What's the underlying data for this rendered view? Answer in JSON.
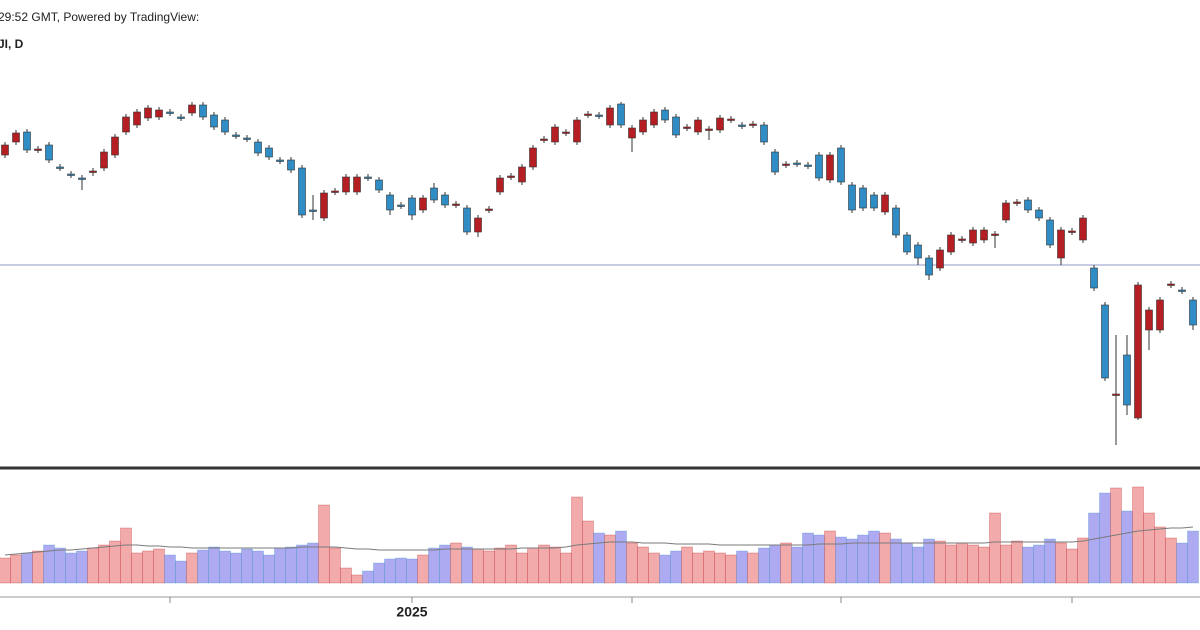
{
  "chart_data": {
    "type": "candlestick",
    "title": "29:52 GMT, Powered by TradingView:",
    "subtitle": "JI, D",
    "open": [
      315,
      328,
      338,
      320,
      325,
      303,
      296,
      292,
      298,
      302,
      315,
      338,
      345,
      352,
      353,
      358,
      353,
      357,
      365,
      355,
      350,
      335,
      332,
      328,
      322,
      310,
      310,
      302,
      260,
      252,
      278,
      278,
      278,
      293,
      290,
      275,
      265,
      272,
      260,
      282,
      275,
      265,
      262,
      238,
      260,
      278,
      293,
      288,
      303,
      330,
      328,
      337,
      328,
      355,
      355,
      345,
      366,
      332,
      338,
      345,
      360,
      353,
      342,
      338,
      340,
      340,
      350,
      345,
      345,
      345,
      318,
      305,
      307,
      305,
      315,
      290,
      322,
      285,
      282,
      275,
      258,
      262,
      235,
      225,
      212,
      202,
      218,
      230,
      227,
      230,
      235,
      250,
      267,
      270,
      260,
      250,
      212,
      238,
      230,
      202,
      165,
      75,
      115,
      52,
      140,
      140,
      185,
      180,
      170
    ],
    "high": [
      328,
      340,
      341,
      324,
      328,
      306,
      299,
      295,
      302,
      321,
      336,
      356,
      361,
      365,
      363,
      361,
      356,
      368,
      368,
      358,
      353,
      338,
      335,
      331,
      325,
      313,
      313,
      305,
      275,
      280,
      282,
      296,
      296,
      296,
      293,
      278,
      268,
      275,
      275,
      287,
      278,
      269,
      265,
      255,
      264,
      295,
      297,
      306,
      325,
      334,
      346,
      341,
      353,
      359,
      358,
      365,
      368,
      345,
      353,
      361,
      363,
      356,
      346,
      353,
      344,
      355,
      354,
      348,
      349,
      348,
      321,
      309,
      310,
      308,
      318,
      318,
      325,
      288,
      285,
      278,
      278,
      265,
      238,
      228,
      215,
      223,
      238,
      234,
      243,
      243,
      239,
      270,
      271,
      273,
      263,
      253,
      243,
      242,
      255,
      205,
      168,
      135,
      135,
      188,
      163,
      173,
      189,
      183,
      173
    ],
    "low": [
      312,
      325,
      317,
      317,
      307,
      299,
      292,
      280,
      294,
      299,
      312,
      335,
      342,
      349,
      350,
      354,
      349,
      354,
      350,
      340,
      335,
      331,
      328,
      314,
      310,
      306,
      297,
      252,
      250,
      249,
      275,
      275,
      275,
      289,
      277,
      255,
      261,
      250,
      257,
      267,
      262,
      262,
      235,
      233,
      257,
      275,
      290,
      285,
      300,
      327,
      325,
      334,
      325,
      352,
      351,
      342,
      342,
      318,
      335,
      342,
      347,
      332,
      339,
      335,
      330,
      337,
      347,
      341,
      342,
      325,
      295,
      302,
      303,
      301,
      289,
      287,
      285,
      257,
      259,
      259,
      255,
      232,
      215,
      205,
      190,
      199,
      215,
      227,
      224,
      227,
      222,
      247,
      264,
      257,
      249,
      222,
      205,
      235,
      227,
      179,
      89,
      25,
      55,
      50,
      120,
      137,
      182,
      176,
      140
    ],
    "close": [
      325,
      337,
      320,
      321,
      310,
      302,
      295,
      291,
      299,
      318,
      333,
      353,
      358,
      362,
      360,
      357,
      352,
      365,
      353,
      343,
      338,
      334,
      331,
      317,
      313,
      309,
      300,
      255,
      259,
      277,
      279,
      293,
      293,
      292,
      280,
      260,
      264,
      255,
      272,
      270,
      265,
      266,
      238,
      252,
      261,
      292,
      294,
      303,
      322,
      331,
      343,
      338,
      350,
      356,
      354,
      362,
      345,
      342,
      350,
      358,
      350,
      335,
      343,
      350,
      341,
      352,
      351,
      344,
      346,
      328,
      298,
      306,
      306,
      304,
      292,
      315,
      288,
      260,
      262,
      262,
      275,
      235,
      218,
      212,
      195,
      220,
      235,
      231,
      240,
      240,
      236,
      267,
      268,
      260,
      252,
      225,
      240,
      239,
      252,
      182,
      92,
      76,
      65,
      185,
      160,
      170,
      186,
      179,
      145
    ],
    "up_color": "#b51f24",
    "down_color": "#2f8cc4",
    "ylim": [
      0,
      410
    ],
    "hline": 205,
    "hline_color": "#a7aed0",
    "volume": {
      "values": [
        25,
        28,
        30,
        32,
        38,
        35,
        30,
        32,
        35,
        38,
        42,
        55,
        30,
        32,
        34,
        28,
        22,
        30,
        33,
        36,
        32,
        30,
        34,
        32,
        28,
        35,
        36,
        38,
        40,
        78,
        35,
        15,
        8,
        12,
        20,
        24,
        25,
        24,
        28,
        35,
        38,
        40,
        36,
        34,
        32,
        35,
        38,
        30,
        35,
        38,
        36,
        30,
        86,
        62,
        50,
        48,
        52,
        40,
        36,
        30,
        28,
        32,
        36,
        30,
        32,
        30,
        28,
        32,
        30,
        35,
        38,
        40,
        36,
        50,
        48,
        52,
        46,
        44,
        48,
        52,
        50,
        44,
        40,
        36,
        44,
        42,
        38,
        40,
        38,
        36,
        70,
        38,
        42,
        36,
        38,
        44,
        40,
        34,
        45,
        70,
        90,
        95,
        72,
        96,
        70,
        56,
        45,
        40,
        52
      ],
      "ma": [
        28,
        29,
        30,
        31,
        32,
        33,
        33,
        34,
        35,
        36,
        37,
        38,
        38,
        37,
        37,
        36,
        36,
        35,
        35,
        35,
        35,
        35,
        35,
        35,
        35,
        35,
        35,
        36,
        36,
        36,
        36,
        35,
        34,
        34,
        33,
        33,
        33,
        33,
        33,
        33,
        34,
        34,
        34,
        34,
        34,
        34,
        34,
        35,
        35,
        35,
        35,
        36,
        38,
        39,
        40,
        41,
        41,
        41,
        40,
        40,
        40,
        39,
        39,
        39,
        39,
        38,
        38,
        38,
        38,
        38,
        38,
        38,
        38,
        38,
        39,
        39,
        39,
        40,
        40,
        40,
        40,
        40,
        40,
        40,
        40,
        40,
        40,
        40,
        40,
        40,
        41,
        41,
        41,
        41,
        41,
        41,
        41,
        41,
        42,
        44,
        46,
        48,
        50,
        52,
        53,
        54,
        55,
        55,
        56
      ],
      "ylim": [
        0,
        111
      ],
      "up_color": "#f3aaaa",
      "down_color": "#aeaaf2",
      "ma_color": "#7a7a7a"
    },
    "xticks": [
      {
        "value": 15,
        "label": null
      },
      {
        "value": 37,
        "label": "2025"
      },
      {
        "value": 57,
        "label": null
      },
      {
        "value": 76,
        "label": null
      },
      {
        "value": 97,
        "label": null
      }
    ]
  }
}
